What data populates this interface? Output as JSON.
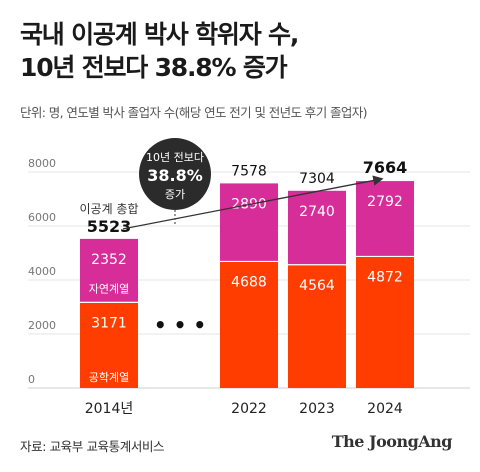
{
  "title_line1": "국내 이공계 박사 학위자 수,",
  "title_line2": "10년 전보다 38.8% 증가",
  "subtitle": "단위: 명, 연도별 박사 졸업자 수(해당 연도 전기 및 전년도 후기 졸업자)",
  "source": "자료: 교육부 교육통계서비스",
  "logo": "The JoongAng",
  "colors": {
    "engineering": "#ff3d00",
    "natural_science": "#d62d98",
    "bubble": "#2b2b2b",
    "axis_text": "#777777"
  },
  "chart_data": {
    "type": "bar",
    "stacked": true,
    "categories": [
      "2014년",
      "2022",
      "2023",
      "2024"
    ],
    "series": [
      {
        "name": "공학계열",
        "values": [
          3171,
          4688,
          4564,
          4872
        ]
      },
      {
        "name": "자연계열",
        "values": [
          2352,
          2890,
          2740,
          2792
        ]
      }
    ],
    "totals": [
      5523,
      7578,
      7304,
      7664
    ],
    "total_label": "이공계 총합",
    "gap_marker": "• • •",
    "ylim": [
      0,
      8000
    ],
    "yticks": [
      0,
      2000,
      4000,
      6000,
      8000
    ],
    "callout": {
      "line1": "10년 전보다",
      "line2": "38.8%",
      "line3": "증가"
    }
  }
}
